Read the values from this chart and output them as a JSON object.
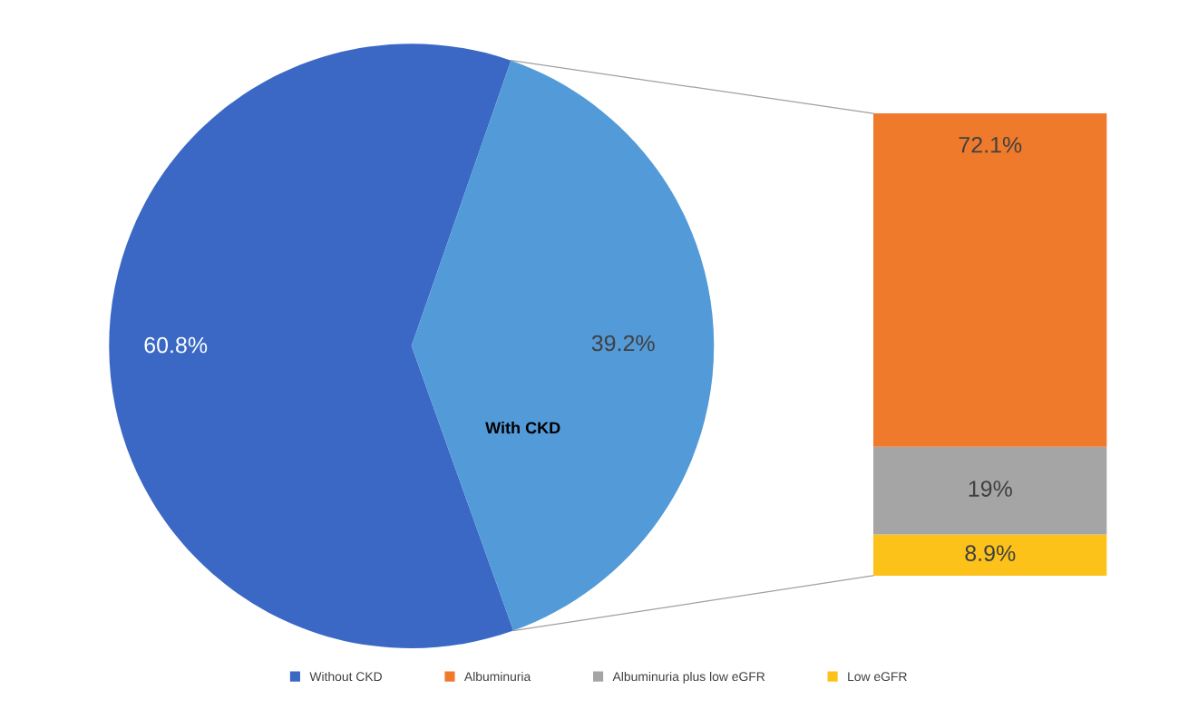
{
  "chart_data": [
    {
      "type": "pie",
      "categories": [
        "Without CKD",
        "With CKD"
      ],
      "values": [
        60.8,
        39.2
      ],
      "colors": [
        "#3a68c4",
        "#529ad8"
      ],
      "value_labels": [
        "60.8%",
        "39.2%"
      ],
      "legend": "bottom"
    },
    {
      "type": "bar",
      "stacked": true,
      "categories": [
        null
      ],
      "legend": "bottom",
      "series": [
        {
          "name": "Low eGFR",
          "color": "#fcc21a",
          "values": [
            8.9
          ],
          "value_labels": [
            "8.9%"
          ]
        },
        {
          "name": "Albuminuria plus low eGFR",
          "color": "#a5a5a5",
          "values": [
            19
          ],
          "value_labels": [
            "19%"
          ]
        },
        {
          "name": "Albuminuria",
          "color": "#ef7a2c",
          "values": [
            72.1
          ],
          "value_labels": [
            "72.1%"
          ]
        }
      ]
    }
  ]
}
